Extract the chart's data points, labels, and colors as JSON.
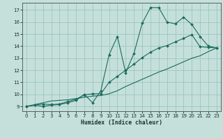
{
  "xlabel": "Humidex (Indice chaleur)",
  "bg_color": "#c5e0db",
  "grid_color": "#9dc4bf",
  "line_color": "#1a6b5e",
  "spine_color": "#556060",
  "text_color": "#1a3030",
  "xlim": [
    -0.5,
    23.5
  ],
  "ylim": [
    8.6,
    17.6
  ],
  "xtick_labels": [
    "0",
    "1",
    "2",
    "3",
    "4",
    "5",
    "6",
    "7",
    "8",
    "9",
    "10",
    "11",
    "12",
    "13",
    "14",
    "15",
    "16",
    "17",
    "18",
    "19",
    "20",
    "21",
    "22",
    "23"
  ],
  "xticks": [
    0,
    1,
    2,
    3,
    4,
    5,
    6,
    7,
    8,
    9,
    10,
    11,
    12,
    13,
    14,
    15,
    16,
    17,
    18,
    19,
    20,
    21,
    22,
    23
  ],
  "yticks": [
    9,
    10,
    11,
    12,
    13,
    14,
    15,
    16,
    17
  ],
  "line1_x": [
    0,
    1,
    2,
    3,
    4,
    5,
    6,
    7,
    8,
    9,
    10,
    11,
    12,
    13,
    14,
    15,
    16,
    17,
    18,
    19,
    20,
    21,
    22,
    23
  ],
  "line1_y": [
    9.0,
    9.1,
    9.0,
    9.1,
    9.15,
    9.3,
    9.5,
    10.0,
    9.3,
    10.3,
    13.3,
    14.8,
    11.8,
    13.4,
    15.9,
    17.2,
    17.2,
    16.0,
    15.85,
    16.4,
    15.8,
    14.8,
    14.0,
    13.85
  ],
  "line2_x": [
    0,
    1,
    2,
    3,
    4,
    5,
    6,
    7,
    8,
    9,
    10,
    11,
    12,
    13,
    14,
    15,
    16,
    17,
    18,
    19,
    20,
    21,
    22,
    23
  ],
  "line2_y": [
    9.0,
    9.1,
    9.2,
    9.15,
    9.2,
    9.4,
    9.6,
    9.95,
    10.05,
    10.05,
    11.0,
    11.5,
    12.0,
    12.5,
    13.05,
    13.5,
    13.85,
    14.05,
    14.35,
    14.65,
    14.95,
    13.95,
    13.9,
    13.85
  ],
  "line3_x": [
    0,
    1,
    2,
    3,
    4,
    5,
    6,
    7,
    8,
    9,
    10,
    11,
    12,
    13,
    14,
    15,
    16,
    17,
    18,
    19,
    20,
    21,
    22,
    23
  ],
  "line3_y": [
    9.0,
    9.15,
    9.3,
    9.45,
    9.5,
    9.55,
    9.65,
    9.75,
    9.85,
    9.9,
    10.05,
    10.3,
    10.65,
    10.95,
    11.25,
    11.55,
    11.85,
    12.1,
    12.4,
    12.7,
    13.0,
    13.2,
    13.55,
    13.85
  ]
}
